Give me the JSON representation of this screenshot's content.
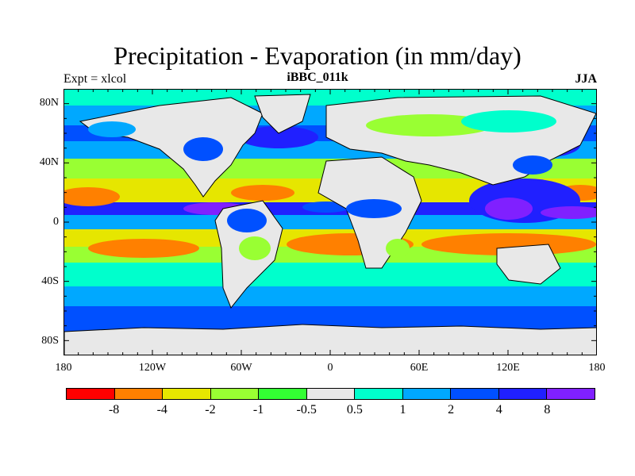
{
  "title": "Precipitation - Evaporation (in mm/day)",
  "left_string": "Expt = xlcol",
  "center_string": "iBBC_011k",
  "right_string": "JJA",
  "lat_labels": [
    "80N",
    "40N",
    "0",
    "40S",
    "80S"
  ],
  "lon_labels": [
    "180",
    "120W",
    "60W",
    "0",
    "60E",
    "120E",
    "180"
  ],
  "colorbar": {
    "colors": [
      "#ff0000",
      "#ff8000",
      "#e6e600",
      "#99ff33",
      "#33ff33",
      "#e8e8e8",
      "#00ffcc",
      "#00a8ff",
      "#0050ff",
      "#2020ff",
      "#8020ff"
    ],
    "labels": [
      "-8",
      "-4",
      "-2",
      "-1",
      "-0.5",
      "0.5",
      "1",
      "2",
      "4",
      "8"
    ]
  },
  "land_color": "#e8e8e8"
}
